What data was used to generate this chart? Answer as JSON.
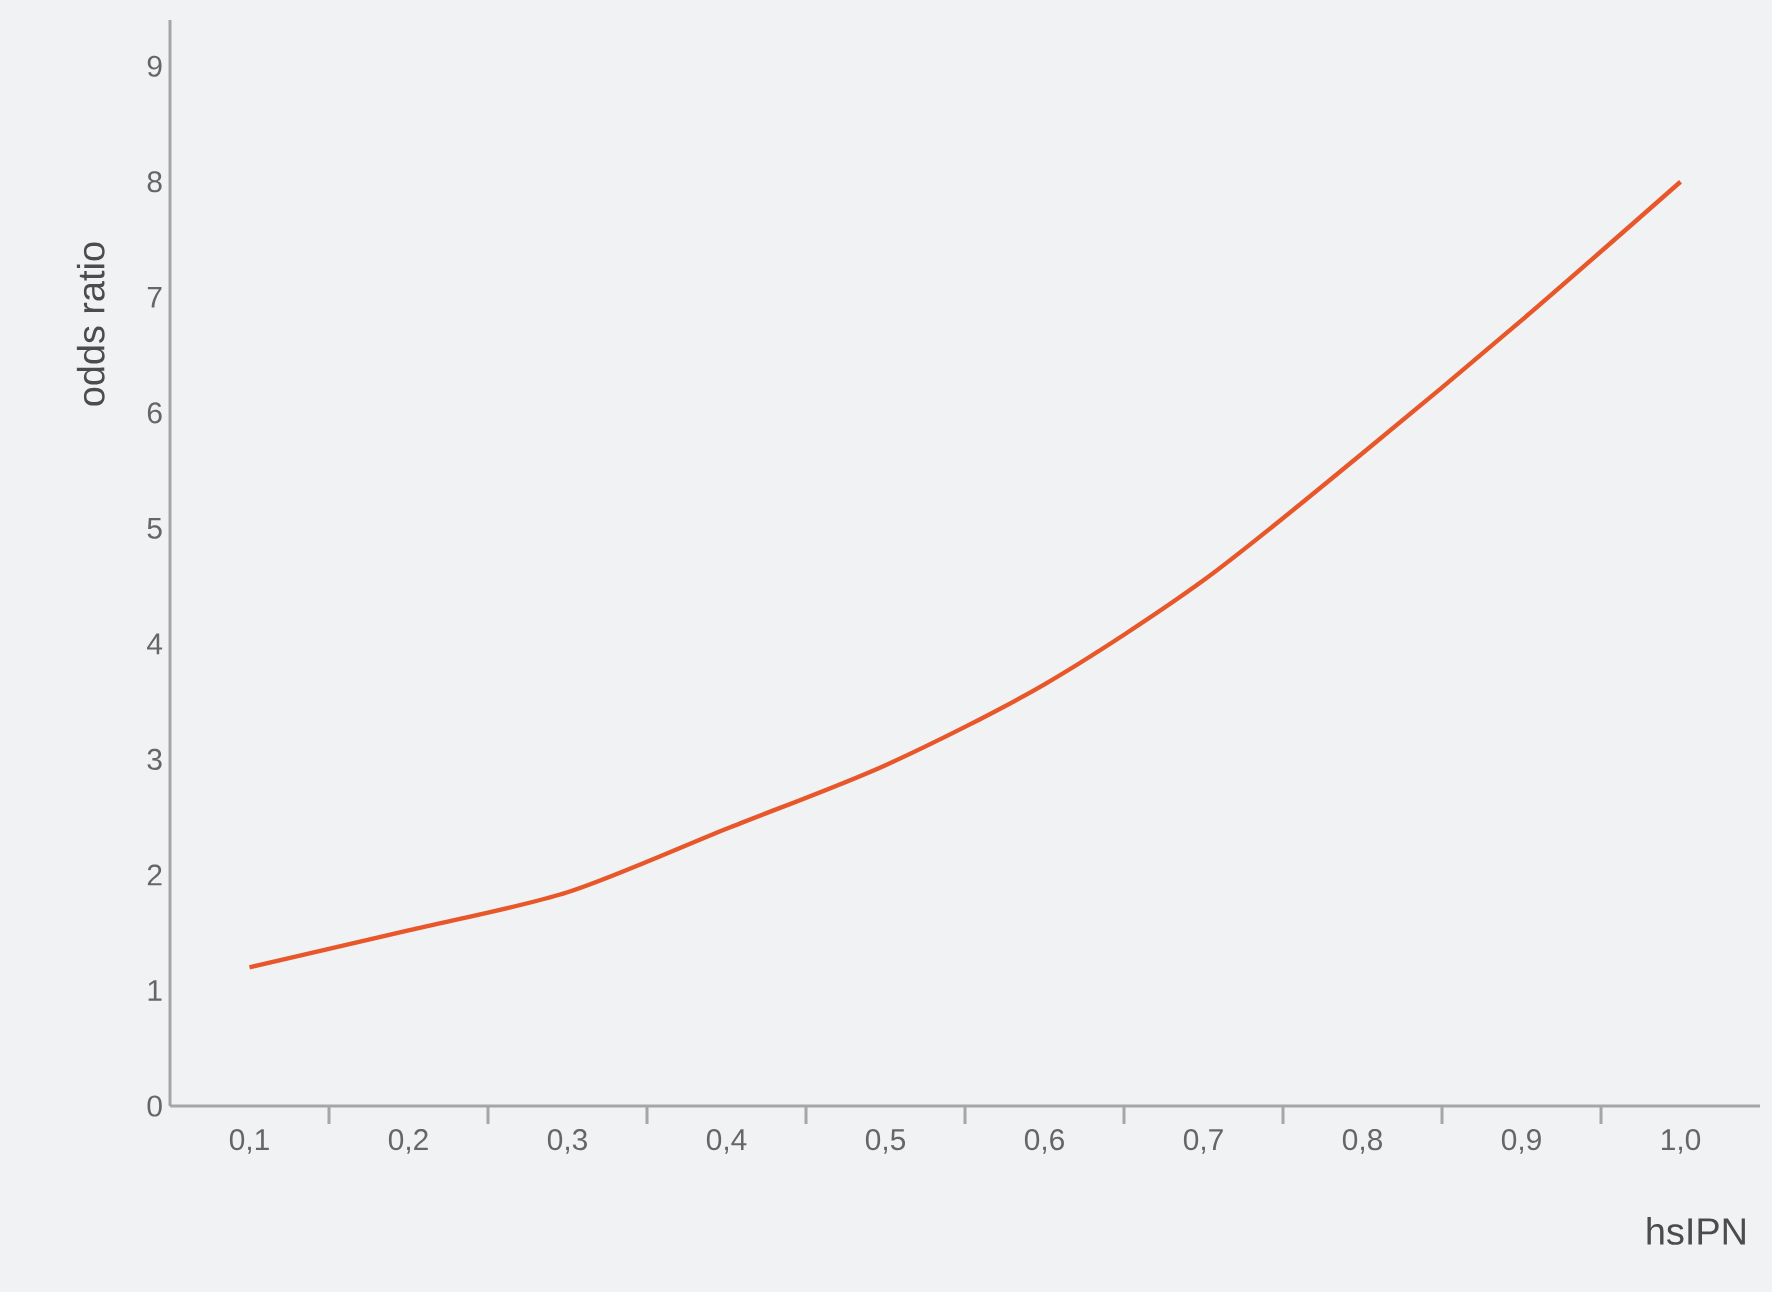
{
  "chart_data": {
    "type": "line",
    "xlabel": "hsIPN",
    "ylabel": "odds ratio",
    "x": [
      0.1,
      0.2,
      0.3,
      0.4,
      0.5,
      0.6,
      0.7,
      0.8,
      0.9,
      1.0
    ],
    "series": [
      {
        "color": "#e8572a",
        "values": [
          1.2,
          1.52,
          1.85,
          2.4,
          2.95,
          3.65,
          4.55,
          5.65,
          6.8,
          8.0
        ]
      }
    ],
    "xlim": [
      0.05,
      1.05
    ],
    "ylim": [
      0,
      9.4
    ],
    "xticks": [
      {
        "value": 0.1,
        "label": "0,1"
      },
      {
        "value": 0.15,
        "label": null
      },
      {
        "value": 0.2,
        "label": "0,2"
      },
      {
        "value": 0.25,
        "label": null
      },
      {
        "value": 0.3,
        "label": "0,3"
      },
      {
        "value": 0.35,
        "label": null
      },
      {
        "value": 0.4,
        "label": "0,4"
      },
      {
        "value": 0.45,
        "label": null
      },
      {
        "value": 0.5,
        "label": "0,5"
      },
      {
        "value": 0.55,
        "label": null
      },
      {
        "value": 0.6,
        "label": "0,6"
      },
      {
        "value": 0.65,
        "label": null
      },
      {
        "value": 0.7,
        "label": "0,7"
      },
      {
        "value": 0.75,
        "label": null
      },
      {
        "value": 0.8,
        "label": "0,8"
      },
      {
        "value": 0.85,
        "label": null
      },
      {
        "value": 0.9,
        "label": "0,9"
      },
      {
        "value": 0.95,
        "label": null
      },
      {
        "value": 1.0,
        "label": "1,0"
      }
    ],
    "yticks": [
      0,
      1,
      2,
      3,
      4,
      5,
      6,
      7,
      8,
      9
    ],
    "marker": "none",
    "line_style": "solid"
  }
}
